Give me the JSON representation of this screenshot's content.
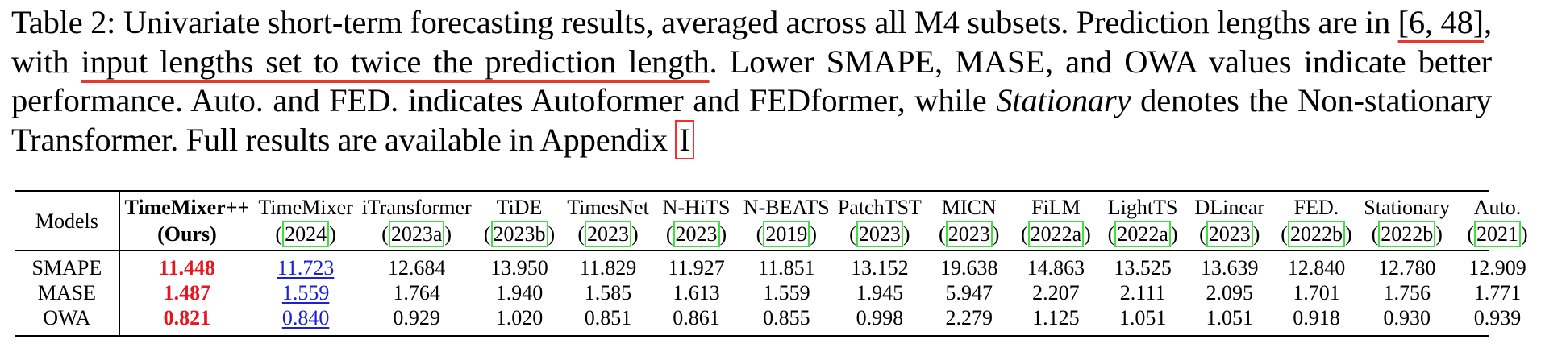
{
  "caption": {
    "p1": "Table 2: Univariate short-term forecasting results, averaged across all M4 subsets. Prediction lengths are in ",
    "range": "[6, 48]",
    "p2": ", with ",
    "underlined": "input lengths set to twice the prediction length",
    "p3": ". Lower SMAPE, MASE, and OWA values indicate better performance. Auto. and FED. indicates Autoformer and FEDformer, while ",
    "italic": "Stationary",
    "p4": " denotes the Non-stationary Transformer. Full results are available in Appendix ",
    "appendix": "I"
  },
  "table": {
    "models_label": "Models",
    "ours": {
      "name": "TimeMixer++",
      "tag": "(Ours)"
    },
    "columns": [
      {
        "name": "TimeMixer",
        "year": "2024"
      },
      {
        "name": "iTransformer",
        "year": "2023a"
      },
      {
        "name": "TiDE",
        "year": "2023b"
      },
      {
        "name": "TimesNet",
        "year": "2023"
      },
      {
        "name": "N-HiTS",
        "year": "2023"
      },
      {
        "name": "N-BEATS",
        "year": "2019"
      },
      {
        "name": "PatchTST",
        "year": "2023"
      },
      {
        "name": "MICN",
        "year": "2023"
      },
      {
        "name": "FiLM",
        "year": "2022a"
      },
      {
        "name": "LightTS",
        "year": "2022a"
      },
      {
        "name": "DLinear",
        "year": "2023"
      },
      {
        "name": "FED.",
        "year": "2022b"
      },
      {
        "name": "Stationary",
        "year": "2022b"
      },
      {
        "name": "Auto.",
        "year": "2021"
      }
    ],
    "rows": [
      {
        "metric": "SMAPE",
        "ours": "11.448",
        "values": [
          "11.723",
          "12.684",
          "13.950",
          "11.829",
          "11.927",
          "11.851",
          "13.152",
          "19.638",
          "14.863",
          "13.525",
          "13.639",
          "12.840",
          "12.780",
          "12.909"
        ]
      },
      {
        "metric": "MASE",
        "ours": "1.487",
        "values": [
          "1.559",
          "1.764",
          "1.940",
          "1.585",
          "1.613",
          "1.559",
          "1.945",
          "5.947",
          "2.207",
          "2.111",
          "2.095",
          "1.701",
          "1.756",
          "1.771"
        ]
      },
      {
        "metric": "OWA",
        "ours": "0.821",
        "values": [
          "0.840",
          "0.929",
          "1.020",
          "0.851",
          "0.861",
          "0.855",
          "0.998",
          "2.279",
          "1.125",
          "1.051",
          "1.051",
          "0.918",
          "0.930",
          "0.939"
        ]
      }
    ],
    "highlight_colors": {
      "best": "#e8141f",
      "second": "#1a20d6",
      "citation_box": "#40e040",
      "appendix_box": "#ff2a2a",
      "underline": "#e8372c"
    }
  }
}
